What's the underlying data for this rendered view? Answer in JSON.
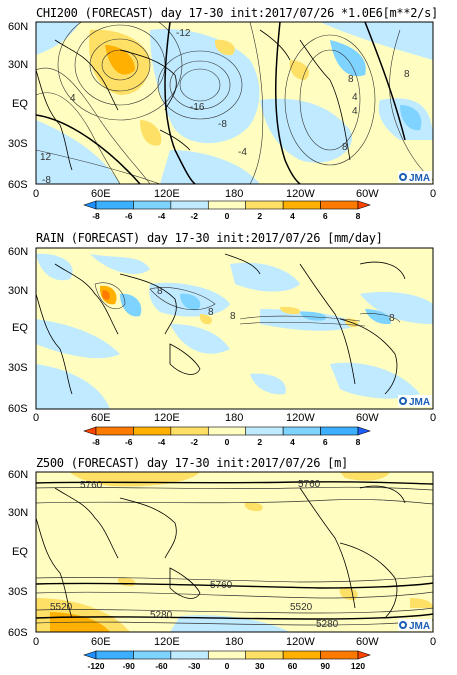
{
  "panels": [
    {
      "title_field": "CHI200",
      "title_kind": "(FORECAST)",
      "title_period": "day 17-30",
      "title_init": "init:2017/07/26",
      "title_units": "*1.0E6[m**2/s]",
      "lat_labels": [
        "60N",
        "30N",
        "EQ",
        "30S",
        "60S"
      ],
      "lon_labels": [
        "0",
        "60E",
        "120E",
        "180",
        "120W",
        "60W",
        "0"
      ],
      "contour_labels": [
        "-12",
        "4",
        "-16",
        "-8",
        "-4",
        "12",
        "-8",
        "8",
        "4",
        "8",
        "8",
        "4"
      ],
      "colorbar_labels": [
        "-8",
        "-6",
        "-4",
        "-2",
        "0",
        "2",
        "4",
        "6",
        "8"
      ],
      "colorbar_colors": [
        "#1e90ff",
        "#3cb0ff",
        "#7fd3ff",
        "#bfeaff",
        "#fffec0",
        "#ffe066",
        "#ffb000",
        "#ff7a00",
        "#ff4500"
      ],
      "logo": "JMA"
    },
    {
      "title_field": "RAIN",
      "title_kind": "(FORECAST)",
      "title_period": "day 17-30",
      "title_init": "init:2017/07/26",
      "title_units": "[mm/day]",
      "lat_labels": [
        "60N",
        "30N",
        "EQ",
        "30S",
        "60S"
      ],
      "lon_labels": [
        "0",
        "60E",
        "120E",
        "180",
        "120W",
        "60W",
        "0"
      ],
      "contour_labels": [
        "8",
        "8",
        "8",
        "8"
      ],
      "colorbar_labels": [
        "-8",
        "-6",
        "-4",
        "-2",
        "0",
        "2",
        "4",
        "6",
        "8"
      ],
      "colorbar_colors": [
        "#ff4500",
        "#ff7a00",
        "#ffb000",
        "#ffe066",
        "#fffec0",
        "#bfeaff",
        "#7fd3ff",
        "#3cb0ff",
        "#1e60ff"
      ],
      "logo": "JMA"
    },
    {
      "title_field": "Z500",
      "title_kind": "(FORECAST)",
      "title_period": "day 17-30",
      "title_init": "init:2017/07/26",
      "title_units": "[m]",
      "lat_labels": [
        "60N",
        "30N",
        "EQ",
        "30S",
        "60S"
      ],
      "lon_labels": [
        "0",
        "60E",
        "120E",
        "180",
        "120W",
        "60W",
        "0"
      ],
      "contour_labels": [
        "5760",
        "5760",
        "5760",
        "5520",
        "5520",
        "5280",
        "5280"
      ],
      "colorbar_labels": [
        "-120",
        "-90",
        "-60",
        "-30",
        "0",
        "30",
        "60",
        "90",
        "120"
      ],
      "colorbar_colors": [
        "#1e90ff",
        "#3cb0ff",
        "#7fd3ff",
        "#bfeaff",
        "#fffec0",
        "#ffe066",
        "#ffb000",
        "#ff7a00",
        "#ff4500"
      ],
      "logo": "JMA"
    }
  ]
}
